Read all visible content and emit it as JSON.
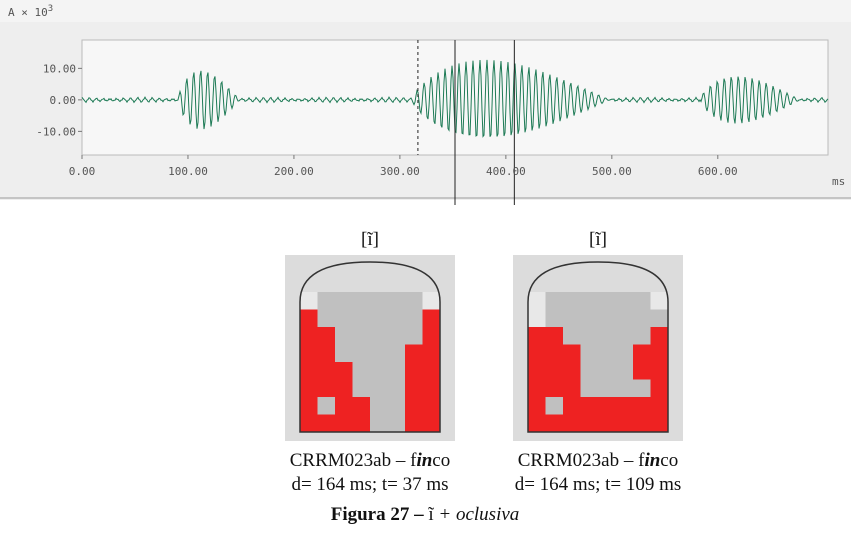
{
  "waveform": {
    "y_label": "A × 10",
    "y_label_exp": "3",
    "x_unit": "ms",
    "xlim": [
      0,
      704
    ],
    "ylim": [
      -17.5,
      19
    ],
    "xticks": [
      {
        "value": 0,
        "label": "0.00"
      },
      {
        "value": 100,
        "label": "100.00"
      },
      {
        "value": 200,
        "label": "200.00"
      },
      {
        "value": 300,
        "label": "300.00"
      },
      {
        "value": 400,
        "label": "400.00"
      },
      {
        "value": 500,
        "label": "500.00"
      },
      {
        "value": 600,
        "label": "600.00"
      }
    ],
    "yticks": [
      {
        "value": 10,
        "label": "10.00"
      },
      {
        "value": 0,
        "label": "0.00"
      },
      {
        "value": -10,
        "label": "-10.00"
      }
    ],
    "cursors": [
      317,
      352,
      408
    ]
  },
  "figures": [
    {
      "symbol": "[ĩ]",
      "caption_1": "CRRM023ab – f",
      "caption_bold": "in",
      "caption_2": "co",
      "caption_line2": "d= 164 ms; t= 37 ms"
    },
    {
      "symbol": "[ĩ]",
      "caption_1": "CRRM023ab – f",
      "caption_bold": "in",
      "caption_2": "co",
      "caption_line2": "d= 164 ms; t= 109 ms"
    }
  ],
  "caption": {
    "label": "Figura 27 –",
    "symbol": "ĩ",
    "text": "+ oclusiva"
  }
}
